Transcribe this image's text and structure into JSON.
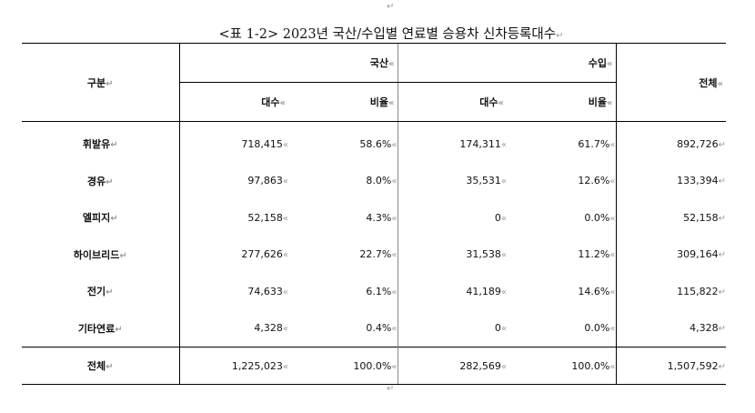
{
  "marks": {
    "para": "↵",
    "cell": "«"
  },
  "caption": "<표 1-2> 2023년 국산/수입별 연료별 승용차 신차등록대수",
  "header": {
    "category": "구분",
    "domestic": "국산",
    "imported": "수입",
    "total": "전체",
    "count": "대수",
    "ratio": "비율"
  },
  "rows": [
    {
      "label": "휘발유",
      "dom_count": "718,415",
      "dom_ratio": "58.6%",
      "imp_count": "174,311",
      "imp_ratio": "61.7%",
      "total": "892,726"
    },
    {
      "label": "경유",
      "dom_count": "97,863",
      "dom_ratio": "8.0%",
      "imp_count": "35,531",
      "imp_ratio": "12.6%",
      "total": "133,394"
    },
    {
      "label": "엘피지",
      "dom_count": "52,158",
      "dom_ratio": "4.3%",
      "imp_count": "0",
      "imp_ratio": "0.0%",
      "total": "52,158"
    },
    {
      "label": "하이브리드",
      "dom_count": "277,626",
      "dom_ratio": "22.7%",
      "imp_count": "31,538",
      "imp_ratio": "11.2%",
      "total": "309,164"
    },
    {
      "label": "전기",
      "dom_count": "74,633",
      "dom_ratio": "6.1%",
      "imp_count": "41,189",
      "imp_ratio": "14.6%",
      "total": "115,822"
    },
    {
      "label": "기타연료",
      "dom_count": "4,328",
      "dom_ratio": "0.4%",
      "imp_count": "0",
      "imp_ratio": "0.0%",
      "total": "4,328"
    }
  ],
  "total_row": {
    "label": "전체",
    "dom_count": "1,225,023",
    "dom_ratio": "100.0%",
    "imp_count": "282,569",
    "imp_ratio": "100.0%",
    "total": "1,507,592"
  }
}
